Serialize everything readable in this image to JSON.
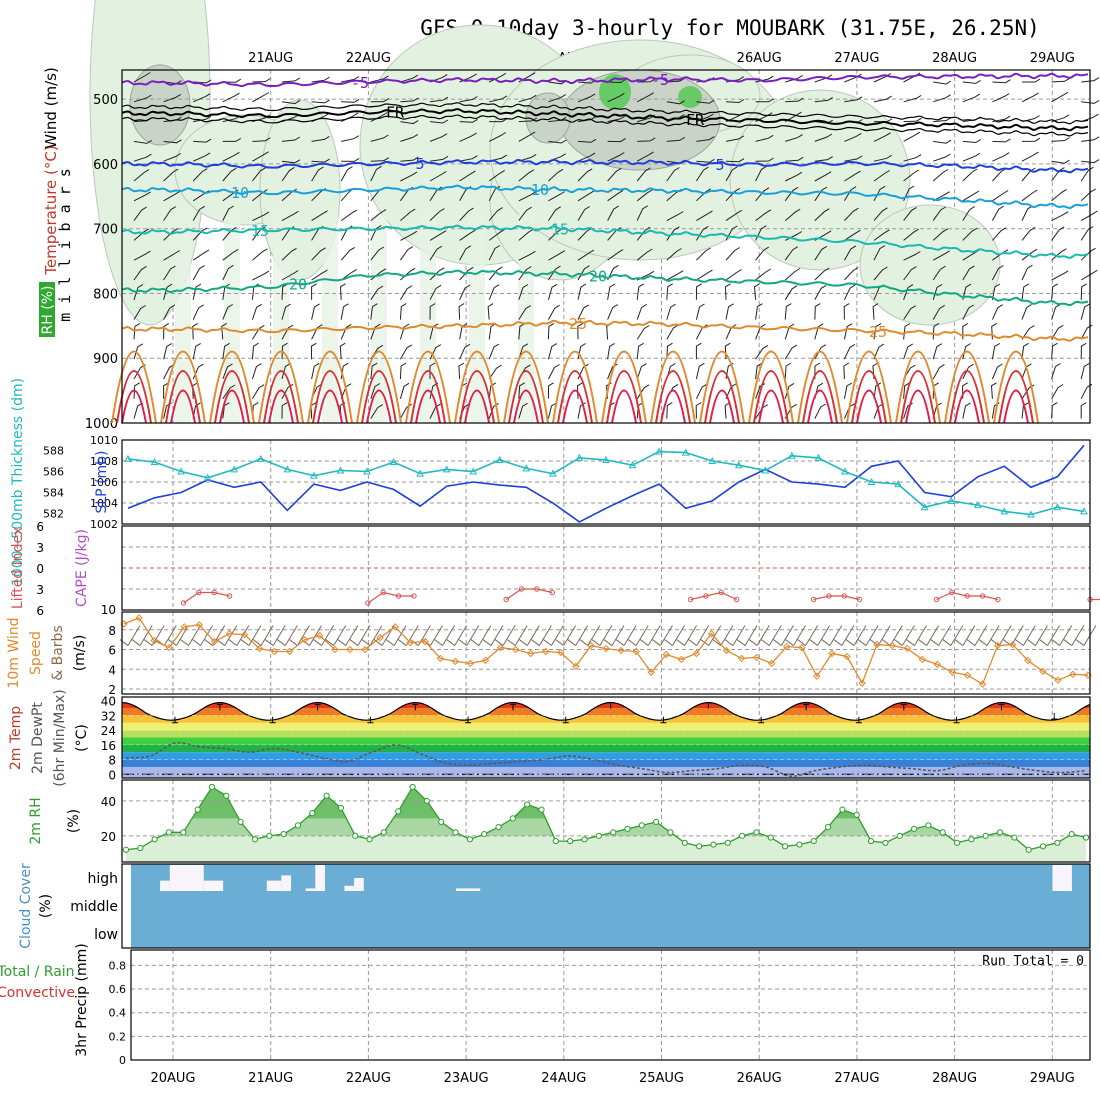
{
  "title": "GFS 0~10day 3-hourly for MOUBARK (31.75E, 26.25N)",
  "dates": [
    "20AUG",
    "21AUG",
    "22AUG",
    "23AUG",
    "24AUG",
    "25AUG",
    "26AUG",
    "27AUG",
    "28AUG",
    "29AUG"
  ],
  "colors": {
    "grid": "#9a9a9a",
    "cloudFill": "#6aaed6",
    "rhLine": "#2e9e2e",
    "rhFill": "#d9efd6",
    "slp": "#1f3fd6",
    "thickness": "#22b8c0",
    "lifted": "#d9534f",
    "wind": "#e08a2e",
    "purple": "#7a1fbf",
    "blue": "#1f3fd6",
    "cyan": "#1aa0d8",
    "teal": "#1bb8b0",
    "green": "#12a882",
    "orange": "#e08a2e",
    "red": "#d93030",
    "black": "#000000"
  },
  "chart_data": [
    {
      "id": "upper_air",
      "type": "contour",
      "ylabel": "m i l l i b a r s",
      "left_labels": [
        "Wind (m/s)",
        "Temperature (°C)",
        "RH (%)"
      ],
      "yticks": [
        500,
        600,
        700,
        800,
        900,
        1000
      ],
      "ylim": [
        455,
        1000
      ],
      "isotherms": [
        {
          "label": "-5",
          "color": "purple",
          "values": [
            475,
            478,
            473,
            470,
            472,
            469,
            471,
            466,
            465,
            464
          ]
        },
        {
          "label": "FR",
          "color": "black",
          "values": [
            522,
            526,
            520,
            518,
            523,
            529,
            533,
            537,
            540,
            545
          ]
        },
        {
          "label": "5",
          "color": "blue",
          "values": [
            600,
            604,
            600,
            597,
            597,
            598,
            601,
            599,
            603,
            610
          ]
        },
        {
          "label": "10",
          "color": "cyan",
          "values": [
            640,
            645,
            640,
            636,
            640,
            641,
            644,
            646,
            655,
            665
          ]
        },
        {
          "label": "15",
          "color": "teal",
          "values": [
            705,
            702,
            700,
            698,
            700,
            707,
            713,
            720,
            732,
            742
          ]
        },
        {
          "label": "20",
          "color": "green",
          "values": [
            795,
            790,
            772,
            767,
            770,
            777,
            782,
            787,
            802,
            815
          ]
        },
        {
          "label": "25",
          "color": "orange",
          "values": [
            855,
            858,
            853,
            850,
            845,
            847,
            853,
            857,
            862,
            870
          ]
        }
      ]
    },
    {
      "id": "slp_thickness",
      "type": "line",
      "left_ylabel": "1000~500mb Thickness (dm)",
      "right_ylabel": "SLP (mb)",
      "left_ticks": [
        582,
        584,
        586,
        588
      ],
      "right_ticks": [
        1002,
        1004,
        1006,
        1008,
        1010
      ],
      "series": [
        {
          "name": "SLP (mb)",
          "color": "slp",
          "values": [
            1003.5,
            1004.5,
            1005.0,
            1006.2,
            1005.5,
            1006.0,
            1003.3,
            1005.8,
            1005.2,
            1006.0,
            1005.3,
            1003.7,
            1005.6,
            1006.0,
            1005.7,
            1005.5,
            1004.0,
            1002.2,
            1003.5,
            1004.7,
            1005.8,
            1003.5,
            1004.2,
            1006.0,
            1007.2,
            1006.0,
            1005.8,
            1005.5,
            1007.5,
            1008.0,
            1005.0,
            1004.6,
            1006.5,
            1007.5,
            1005.5,
            1006.5,
            1009.5
          ]
        },
        {
          "name": "1000~500mb Thickness (dm)",
          "color": "thickness",
          "values": [
            587.2,
            586.9,
            586.0,
            585.4,
            586.2,
            587.2,
            586.2,
            585.6,
            586.1,
            586.0,
            586.9,
            585.8,
            586.2,
            586.0,
            587.1,
            586.3,
            585.8,
            587.3,
            587.1,
            586.6,
            587.9,
            587.8,
            587.0,
            586.6,
            586.1,
            587.5,
            587.3,
            586.0,
            585.0,
            584.8,
            582.6,
            583.2,
            582.8,
            582.2,
            581.9,
            582.6,
            582.2
          ]
        }
      ]
    },
    {
      "id": "lifted_cape",
      "type": "line",
      "left_ylabel": "Lifted Index",
      "right_ylabel": "CAPE (J/kg)",
      "left_ticks": [
        -6,
        -3,
        0,
        3,
        6
      ],
      "right_ticks": [
        10
      ],
      "segments": [
        {
          "start": 4,
          "values": [
            5.0,
            3.5,
            3.5,
            4.0
          ]
        },
        {
          "start": 16,
          "values": [
            5.0,
            3.5,
            4.0,
            4.0
          ]
        },
        {
          "start": 25,
          "values": [
            4.5,
            3.0,
            3.0,
            3.5
          ]
        },
        {
          "start": 37,
          "values": [
            4.5,
            4.0,
            3.5,
            4.5
          ]
        },
        {
          "start": 45,
          "values": [
            4.5,
            4.0,
            4.0,
            4.5
          ]
        },
        {
          "start": 53,
          "values": [
            4.5,
            3.5,
            4.0,
            4.0,
            4.5
          ]
        },
        {
          "start": 63,
          "values": [
            4.5,
            4.5
          ]
        }
      ]
    },
    {
      "id": "wind10m",
      "type": "line",
      "left_ylabel": "10m Wind Speed & Barbs (m/s)",
      "yticks": [
        2,
        4,
        6,
        8
      ],
      "values": [
        8.6,
        9.2,
        6.9,
        6.2,
        8.3,
        8.5,
        6.8,
        7.6,
        7.5,
        6.1,
        5.8,
        5.8,
        7.0,
        7.4,
        6.0,
        6.0,
        6.0,
        7.2,
        8.3,
        6.7,
        6.8,
        5.1,
        4.8,
        4.6,
        4.9,
        6.2,
        6.0,
        5.6,
        5.8,
        5.7,
        4.3,
        6.4,
        6.1,
        5.9,
        5.8,
        3.7,
        5.5,
        5.0,
        5.6,
        7.6,
        5.9,
        5.1,
        5.2,
        4.6,
        6.3,
        6.2,
        3.3,
        5.6,
        5.3,
        2.6,
        6.5,
        6.4,
        6.1,
        5.0,
        4.5,
        3.7,
        3.4,
        2.5,
        6.4,
        6.5,
        4.9,
        3.8,
        2.9,
        3.5,
        3.4
      ]
    },
    {
      "id": "temp2m",
      "type": "area",
      "left_ylabel": "2m Temp 2m DewPt (6hr Min/Max) (°C)",
      "yticks": [
        0,
        8,
        16,
        24,
        32,
        40
      ],
      "temp_max": [
        38,
        38,
        38,
        38,
        39,
        39,
        38,
        38,
        38
      ],
      "temp_min": [
        28,
        28,
        28,
        28,
        28,
        28,
        28,
        28,
        28,
        30
      ],
      "dewpoint": [
        9,
        10,
        17,
        15,
        14,
        12,
        14,
        12,
        9,
        7,
        12,
        16,
        11,
        6,
        5,
        6,
        7,
        8,
        10,
        8,
        5,
        3,
        1,
        2,
        3,
        5,
        4,
        -1,
        2,
        4,
        5,
        4,
        3,
        2,
        5,
        6,
        4,
        2,
        1,
        2
      ]
    },
    {
      "id": "rh2m",
      "type": "area",
      "left_ylabel": "2m RH (%)",
      "yticks": [
        20,
        40
      ],
      "values": [
        12,
        13,
        18,
        22,
        22,
        35,
        48,
        43,
        28,
        18,
        20,
        21,
        26,
        33,
        43,
        36,
        20,
        18,
        22,
        34,
        48,
        40,
        28,
        22,
        18,
        21,
        25,
        30,
        38,
        35,
        17,
        17,
        18,
        20,
        22,
        24,
        26,
        28,
        22,
        16,
        14,
        15,
        16,
        20,
        22,
        19,
        14,
        15,
        17,
        25,
        35,
        32,
        17,
        16,
        20,
        24,
        26,
        22,
        16,
        18,
        20,
        22,
        19,
        12,
        14,
        16,
        21,
        19
      ]
    },
    {
      "id": "cloud",
      "type": "bar",
      "left_ylabel": "Cloud Cover (%)",
      "yticks": [
        "high",
        "middle",
        "low"
      ],
      "high_cloud_blocks": [
        [
          6,
          8,
          40
        ],
        [
          8,
          15,
          100
        ],
        [
          15,
          19,
          40
        ],
        [
          28,
          31,
          40
        ],
        [
          31,
          33,
          60
        ],
        [
          36,
          38,
          10
        ],
        [
          38,
          40,
          100
        ],
        [
          44,
          46,
          20
        ],
        [
          46,
          48,
          50
        ],
        [
          67,
          72,
          10
        ],
        [
          190,
          194,
          100
        ]
      ]
    },
    {
      "id": "precip",
      "type": "bar",
      "left_ylabel": "Total / Rain / Convective 3hr Precip (mm)",
      "yticks": [
        0,
        0.2,
        0.4,
        0.6,
        0.8
      ],
      "run_total_label": "Run Total = 0",
      "values": []
    }
  ]
}
